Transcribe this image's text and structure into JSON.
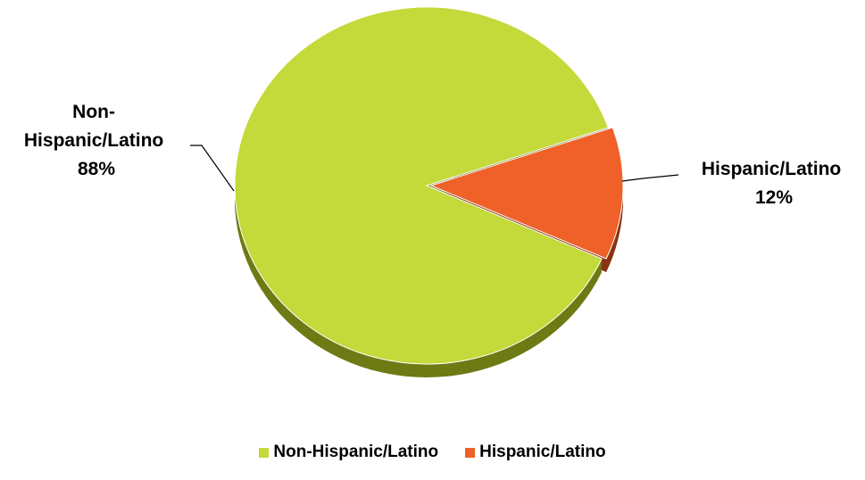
{
  "chart_data": {
    "type": "pie",
    "title": "",
    "categories": [
      "Non-Hispanic/Latino",
      "Hispanic/Latino"
    ],
    "values": [
      88,
      12
    ],
    "unit": "%",
    "colors": [
      "#c4d93a",
      "#ef6128"
    ],
    "shadow_colors": [
      "#6e7a14",
      "#8a3414"
    ],
    "exploded_slice": "Hispanic/Latino",
    "view": "3d",
    "legend": {
      "position": "bottom",
      "entries": [
        "Non-Hispanic/Latino",
        "Hispanic/Latino"
      ]
    },
    "data_labels": [
      {
        "lines": [
          "Non-",
          "Hispanic/Latino",
          "88%"
        ]
      },
      {
        "lines": [
          "Hispanic/Latino",
          "12%"
        ]
      }
    ]
  }
}
